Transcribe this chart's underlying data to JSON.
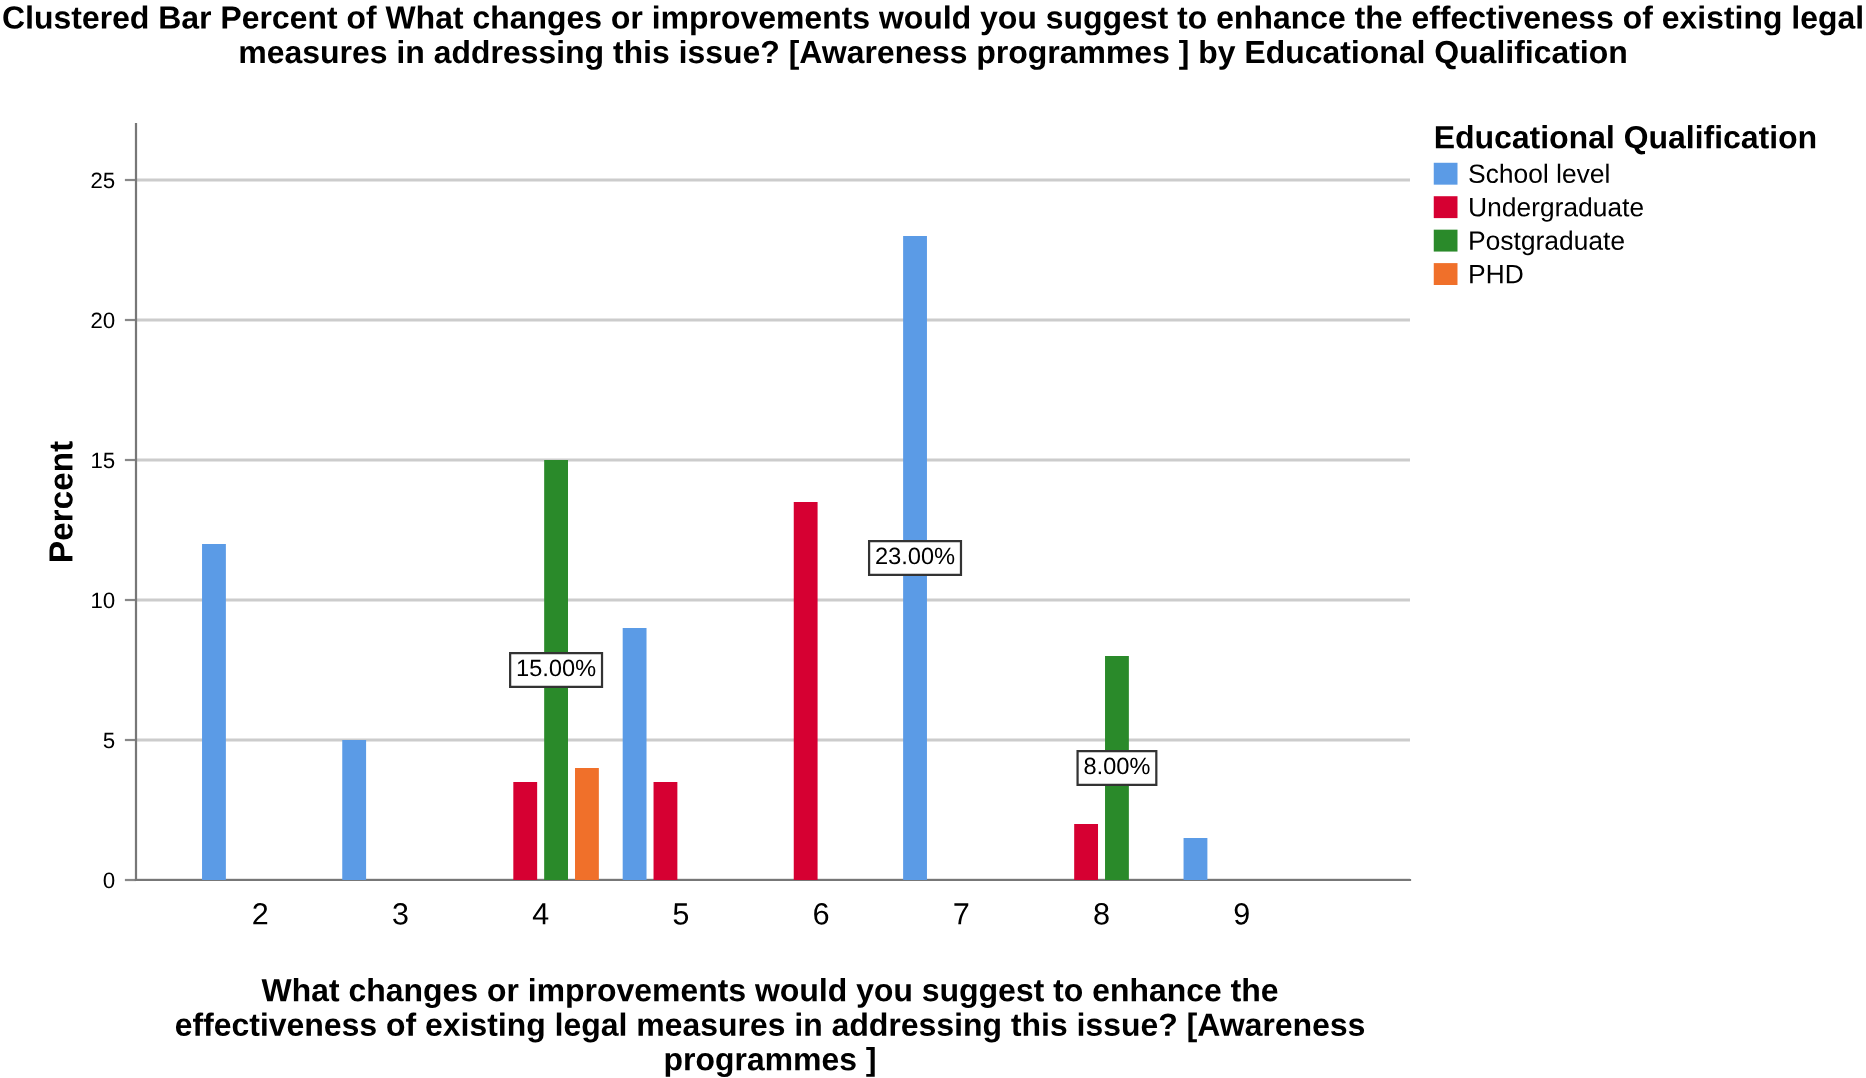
{
  "chart_data": {
    "type": "bar",
    "title": "Clustered Bar Percent of What changes or improvements would you suggest to enhance the effectiveness of existing legal measures in addressing this issue? [Awareness programmes ] by Educational Qualification",
    "xlabel": "What changes or improvements would you suggest to enhance the effectiveness of existing legal measures in addressing this issue? [Awareness programmes ]",
    "ylabel": "Percent",
    "legend_title": "Educational Qualification",
    "categories": [
      "2",
      "3",
      "4",
      "5",
      "6",
      "7",
      "8",
      "9"
    ],
    "series": [
      {
        "name": "School level",
        "color": "#5b9be6",
        "values": [
          12,
          5,
          null,
          9,
          null,
          23,
          null,
          1.5
        ],
        "value_labels": [
          null,
          null,
          null,
          null,
          null,
          "23.00%",
          null,
          null
        ]
      },
      {
        "name": "Undergraduate",
        "color": "#d60032",
        "values": [
          null,
          null,
          3.5,
          3.5,
          13.5,
          null,
          2,
          null
        ]
      },
      {
        "name": "Postgraduate",
        "color": "#2a8a2a",
        "values": [
          null,
          null,
          15,
          null,
          null,
          null,
          8,
          null
        ],
        "value_labels": [
          null,
          null,
          "15.00%",
          null,
          null,
          null,
          "8.00%",
          null
        ]
      },
      {
        "name": "PHD",
        "color": "#f0702a",
        "values": [
          null,
          null,
          4,
          null,
          null,
          null,
          null,
          null
        ]
      }
    ],
    "ylim": [
      0,
      27
    ],
    "yticks": [
      0,
      5,
      10,
      15,
      20,
      25
    ],
    "grid": "y",
    "legend": "top right"
  }
}
